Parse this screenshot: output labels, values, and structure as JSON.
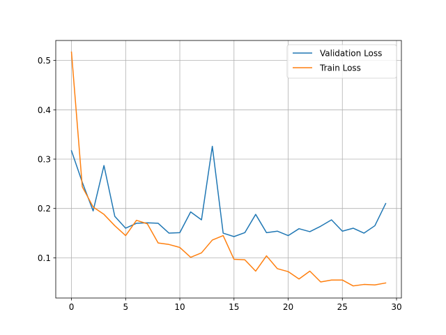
{
  "chart_data": {
    "type": "line",
    "title": "",
    "xlabel": "",
    "ylabel": "",
    "xlim": [
      -1.45,
      30.45
    ],
    "ylim": [
      0.0185,
      0.5405
    ],
    "xticks": [
      0,
      5,
      10,
      15,
      20,
      25,
      30
    ],
    "yticks": [
      0.1,
      0.2,
      0.3,
      0.4,
      0.5
    ],
    "grid": true,
    "legend_position": "top-right",
    "x": [
      0,
      1,
      2,
      3,
      4,
      5,
      6,
      7,
      8,
      9,
      10,
      11,
      12,
      13,
      14,
      15,
      16,
      17,
      18,
      19,
      20,
      21,
      22,
      23,
      24,
      25,
      26,
      27,
      28,
      29
    ],
    "series": [
      {
        "name": "Validation Loss",
        "color": "#1f77b4",
        "values": [
          0.317,
          0.253,
          0.195,
          0.287,
          0.184,
          0.16,
          0.17,
          0.171,
          0.17,
          0.15,
          0.151,
          0.193,
          0.177,
          0.326,
          0.15,
          0.143,
          0.151,
          0.188,
          0.151,
          0.154,
          0.145,
          0.159,
          0.153,
          0.164,
          0.177,
          0.154,
          0.16,
          0.15,
          0.165,
          0.21
        ]
      },
      {
        "name": "Train Loss",
        "color": "#ff7f0e",
        "values": [
          0.517,
          0.244,
          0.203,
          0.188,
          0.165,
          0.145,
          0.176,
          0.169,
          0.13,
          0.127,
          0.121,
          0.101,
          0.11,
          0.136,
          0.145,
          0.097,
          0.096,
          0.073,
          0.104,
          0.078,
          0.072,
          0.057,
          0.073,
          0.051,
          0.055,
          0.055,
          0.043,
          0.046,
          0.045,
          0.049
        ]
      }
    ]
  }
}
